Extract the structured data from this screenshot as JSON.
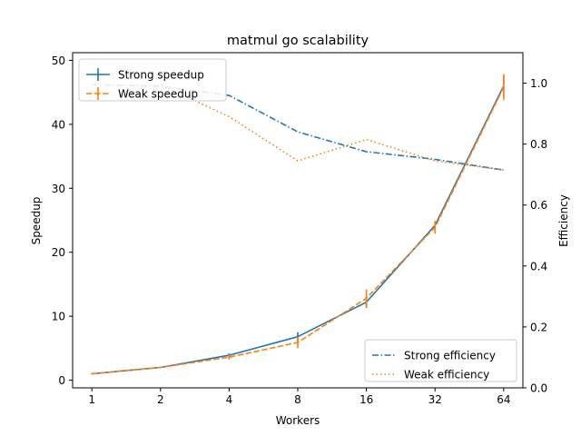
{
  "chart_data": {
    "type": "line",
    "title": "matmul go scalability",
    "xlabel": "Workers",
    "ylabel": "Speedup",
    "y2label": "Efficiency",
    "x_scale": "log2",
    "x": [
      1,
      2,
      4,
      8,
      16,
      32,
      64
    ],
    "x_tick_labels": [
      "1",
      "2",
      "4",
      "8",
      "16",
      "32",
      "64"
    ],
    "ylim": [
      -1.2,
      51.2
    ],
    "y_ticks": [
      0,
      10,
      20,
      30,
      40,
      50
    ],
    "y2lim": [
      0,
      1.1
    ],
    "y2_ticks": [
      "0.0",
      "0.2",
      "0.4",
      "0.6",
      "0.8",
      "1.0"
    ],
    "series": [
      {
        "name": "Strong speedup",
        "axis": "left",
        "style": "solid",
        "color": "#1f77b4",
        "values": [
          1.0,
          2.0,
          3.9,
          6.8,
          12.2,
          24.2,
          46.0
        ],
        "errors": [
          0.1,
          0.1,
          0.3,
          0.7,
          0.9,
          0.6,
          1.5
        ]
      },
      {
        "name": "Weak speedup",
        "axis": "left",
        "style": "dashed",
        "color": "#ff7f0e",
        "values": [
          1.0,
          2.0,
          3.6,
          5.9,
          12.8,
          23.9,
          45.8
        ],
        "errors": [
          0.1,
          0.1,
          0.4,
          0.9,
          1.4,
          1.0,
          2.0
        ]
      },
      {
        "name": "Strong efficiency",
        "axis": "right",
        "style": "dashdot",
        "color": "#1f77b4",
        "values": [
          0.995,
          0.99,
          0.96,
          0.84,
          0.775,
          0.75,
          0.715
        ]
      },
      {
        "name": "Weak efficiency",
        "axis": "right",
        "style": "dotted",
        "color": "#ff7f0e",
        "values": [
          0.995,
          0.995,
          0.89,
          0.745,
          0.815,
          0.745,
          0.715
        ]
      }
    ],
    "legends": [
      {
        "placement": "upper-left",
        "entries": [
          "Strong speedup",
          "Weak speedup"
        ]
      },
      {
        "placement": "lower-right",
        "entries": [
          "Strong efficiency",
          "Weak efficiency"
        ]
      }
    ]
  }
}
